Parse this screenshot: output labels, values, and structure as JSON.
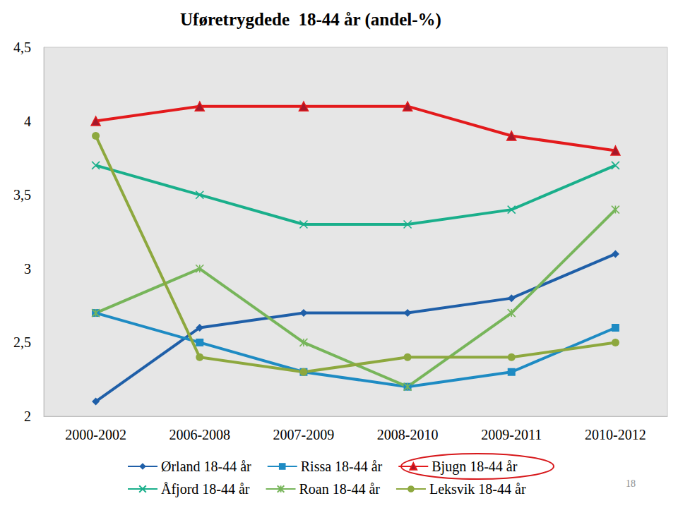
{
  "chart_data": {
    "type": "line",
    "title": "Uføretrygdede  18-44 år (andel-%)",
    "categories": [
      "2000-2002",
      "2006-2008",
      "2007-2009",
      "2008-2010",
      "2009-2011",
      "2010-2012"
    ],
    "series": [
      {
        "name": "Ørland 18-44 år",
        "color": "#1f5fa8",
        "marker": "diamond",
        "values": [
          2.1,
          2.6,
          2.7,
          2.7,
          2.8,
          3.1
        ]
      },
      {
        "name": "Rissa 18-44 år",
        "color": "#1e8bc3",
        "marker": "square",
        "values": [
          2.7,
          2.5,
          2.3,
          2.2,
          2.3,
          2.6
        ]
      },
      {
        "name": "Bjugn 18-44 år",
        "color": "#e31a1c",
        "marker": "triangle",
        "values": [
          4.0,
          4.1,
          4.1,
          4.1,
          3.9,
          3.8
        ]
      },
      {
        "name": "Åfjord 18-44 år",
        "color": "#1aaf8b",
        "marker": "x",
        "values": [
          3.7,
          3.5,
          3.3,
          3.3,
          3.4,
          3.7
        ]
      },
      {
        "name": "Roan 18-44 år",
        "color": "#77b55a",
        "marker": "asterisk",
        "values": [
          2.7,
          3.0,
          2.5,
          2.2,
          2.7,
          3.4
        ]
      },
      {
        "name": "Leksvik 18-44 år",
        "color": "#8da83e",
        "marker": "circle",
        "values": [
          3.9,
          2.4,
          2.3,
          2.4,
          2.4,
          2.5
        ]
      }
    ],
    "ylim": [
      2,
      4.5
    ],
    "yticks": [
      2,
      {
        "value": 2.5,
        "label": "2,5"
      },
      3,
      {
        "value": 3.5,
        "label": "3,5"
      },
      4,
      {
        "value": 4.5,
        "label": "4,5"
      }
    ],
    "grid": false,
    "legend": "bottom",
    "annotations": [
      "18"
    ]
  }
}
